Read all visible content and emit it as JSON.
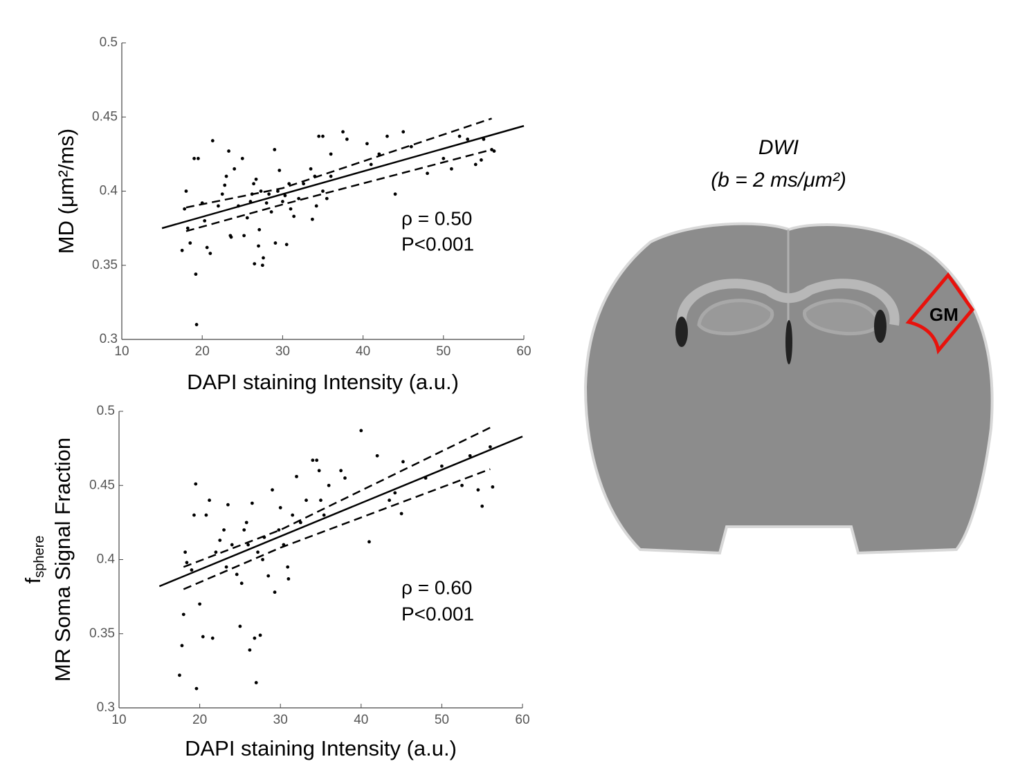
{
  "chart_data": [
    {
      "type": "scatter",
      "color": "#000000",
      "xlabel": "DAPI staining Intensity (a.u.)",
      "ylabel": "MD (μm²/ms)",
      "xlim": [
        10,
        60
      ],
      "ylim": [
        0.3,
        0.5
      ],
      "xticks": [
        10,
        20,
        30,
        40,
        50,
        60
      ],
      "yticks": [
        0.3,
        0.35,
        0.4,
        0.45,
        0.5
      ],
      "annotations": [
        "ρ = 0.50",
        "P<0.001"
      ],
      "x": [
        17.5,
        17.8,
        18,
        18.2,
        18.5,
        19,
        19.2,
        19.3,
        19.5,
        20,
        20.3,
        20.6,
        21,
        21.3,
        22,
        22.5,
        22.8,
        23,
        23.3,
        23.5,
        23.6,
        24,
        24.5,
        25,
        25.2,
        25.6,
        26,
        26.2,
        26.4,
        26.5,
        26.7,
        27,
        27.1,
        27.3,
        27.5,
        27.6,
        28,
        28.3,
        28.6,
        29,
        29.1,
        29.4,
        29.6,
        30,
        30.3,
        30.5,
        30.8,
        31,
        31.4,
        32,
        32.6,
        33.5,
        33.7,
        34,
        34.2,
        34.5,
        35,
        35,
        35.5,
        36,
        36,
        37.5,
        38,
        40.5,
        41,
        42,
        43,
        44,
        45,
        46,
        48,
        50,
        51,
        52,
        53,
        54,
        54.7,
        55,
        56,
        56.3
      ],
      "values": [
        0.36,
        0.388,
        0.4,
        0.375,
        0.365,
        0.422,
        0.344,
        0.31,
        0.422,
        0.392,
        0.38,
        0.362,
        0.358,
        0.434,
        0.39,
        0.398,
        0.404,
        0.41,
        0.427,
        0.37,
        0.369,
        0.415,
        0.39,
        0.422,
        0.37,
        0.382,
        0.393,
        0.398,
        0.405,
        0.351,
        0.408,
        0.363,
        0.374,
        0.4,
        0.35,
        0.355,
        0.392,
        0.398,
        0.386,
        0.428,
        0.365,
        0.4,
        0.414,
        0.393,
        0.397,
        0.364,
        0.405,
        0.388,
        0.383,
        0.395,
        0.405,
        0.415,
        0.381,
        0.41,
        0.39,
        0.437,
        0.437,
        0.4,
        0.395,
        0.425,
        0.41,
        0.44,
        0.435,
        0.432,
        0.418,
        0.425,
        0.437,
        0.398,
        0.44,
        0.43,
        0.412,
        0.422,
        0.415,
        0.437,
        0.435,
        0.418,
        0.421,
        0.435,
        0.428,
        0.427
      ],
      "lines": [
        {
          "style": "solid",
          "x": [
            15,
            60
          ],
          "values": [
            0.375,
            0.444
          ]
        },
        {
          "style": "dashed",
          "x": [
            18,
            30,
            56
          ],
          "values": [
            0.389,
            0.402,
            0.449
          ]
        },
        {
          "style": "dashed",
          "x": [
            18,
            30,
            56
          ],
          "values": [
            0.373,
            0.391,
            0.428
          ]
        }
      ]
    },
    {
      "type": "scatter",
      "color": "#000000",
      "xlabel": "DAPI staining Intensity (a.u.)",
      "ylabel": "MR Soma Signal Fraction",
      "ylabel_symbol": {
        "base": "f",
        "sub": "sphere"
      },
      "xlim": [
        10,
        60
      ],
      "ylim": [
        0.3,
        0.5
      ],
      "xticks": [
        10,
        20,
        30,
        40,
        50,
        60
      ],
      "yticks": [
        0.3,
        0.35,
        0.4,
        0.45,
        0.5
      ],
      "annotations": [
        "ρ = 0.60",
        "P<0.001"
      ],
      "x": [
        17.5,
        17.8,
        18,
        18.2,
        18.4,
        19,
        19.3,
        19.5,
        19.6,
        20,
        20.4,
        20.8,
        21.2,
        21.6,
        22,
        22.5,
        23,
        23.3,
        23.5,
        24,
        24.6,
        25,
        25.2,
        25.5,
        25.8,
        26,
        26.2,
        26.5,
        26.8,
        27,
        27.2,
        27.5,
        27.8,
        28,
        28.5,
        29,
        29.3,
        29.8,
        30,
        30.4,
        30.9,
        31,
        31.5,
        32,
        32.5,
        33.2,
        34,
        34.5,
        34.8,
        35,
        35.4,
        36,
        37.5,
        38,
        40,
        41,
        42,
        43.5,
        44.2,
        45,
        45.2,
        48,
        50,
        52.5,
        53.5,
        54.5,
        55,
        56,
        56.3
      ],
      "values": [
        0.322,
        0.342,
        0.363,
        0.405,
        0.398,
        0.393,
        0.43,
        0.451,
        0.313,
        0.37,
        0.348,
        0.43,
        0.44,
        0.347,
        0.405,
        0.413,
        0.42,
        0.395,
        0.437,
        0.41,
        0.39,
        0.355,
        0.384,
        0.42,
        0.425,
        0.41,
        0.339,
        0.438,
        0.347,
        0.317,
        0.405,
        0.349,
        0.4,
        0.415,
        0.389,
        0.447,
        0.378,
        0.42,
        0.435,
        0.41,
        0.395,
        0.387,
        0.43,
        0.456,
        0.425,
        0.44,
        0.467,
        0.467,
        0.46,
        0.44,
        0.43,
        0.45,
        0.46,
        0.455,
        0.487,
        0.412,
        0.47,
        0.44,
        0.445,
        0.431,
        0.466,
        0.455,
        0.463,
        0.45,
        0.47,
        0.447,
        0.436,
        0.476,
        0.449
      ],
      "lines": [
        {
          "style": "solid",
          "x": [
            15,
            60
          ],
          "values": [
            0.382,
            0.483
          ]
        },
        {
          "style": "dashed",
          "x": [
            18,
            30,
            56
          ],
          "values": [
            0.395,
            0.42,
            0.489
          ]
        },
        {
          "style": "dashed",
          "x": [
            18,
            30,
            56
          ],
          "values": [
            0.38,
            0.408,
            0.461
          ]
        }
      ]
    }
  ],
  "image": {
    "title": "DWI",
    "subtitle": "(b = 2 ms/μm²)",
    "region_label": "GM"
  }
}
